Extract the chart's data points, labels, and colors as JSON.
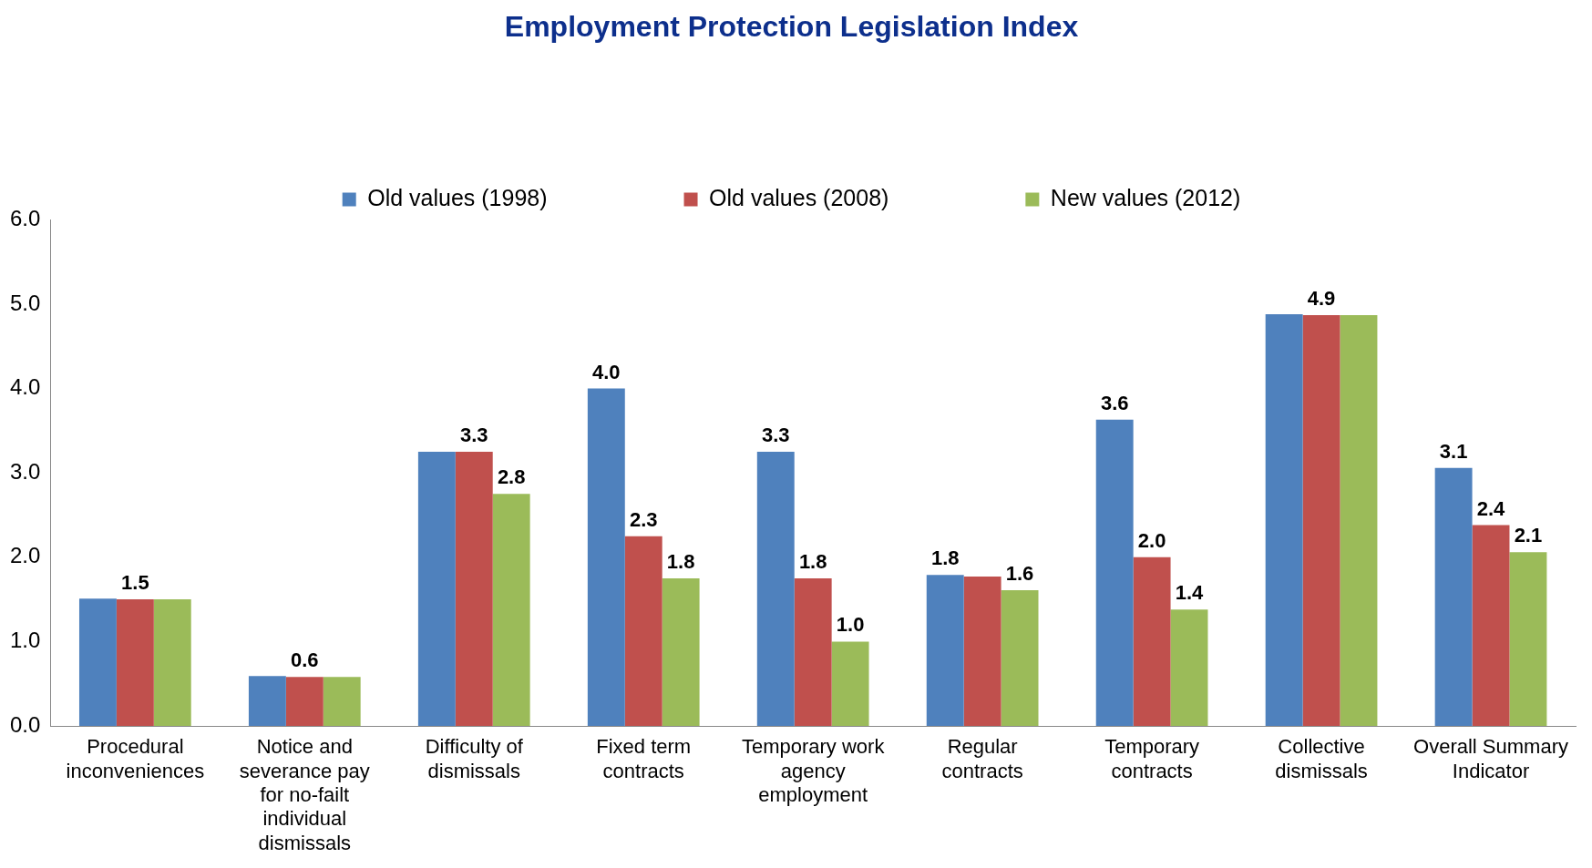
{
  "chart_data": {
    "type": "bar",
    "title": "Employment Protection Legislation Index",
    "categories": [
      "Procedural inconveniences",
      "Notice and severance pay for no-failt individual dismissals",
      "Difficulty of dismissals",
      "Fixed term contracts",
      "Temporary work agency employment",
      "Regular contracts",
      "Temporary contracts",
      "Collective dismissals",
      "Overall Summary Indicator"
    ],
    "series": [
      {
        "name": "Old values (1998)",
        "color": "#4f81bd",
        "values": [
          1.51,
          0.59,
          3.25,
          4.0,
          3.25,
          1.79,
          3.63,
          4.88,
          3.06
        ],
        "value_labels": [
          null,
          null,
          null,
          "4.0",
          "3.3",
          "1.8",
          "3.6",
          null,
          "3.1"
        ]
      },
      {
        "name": "Old values (2008)",
        "color": "#c0504d",
        "values": [
          1.5,
          0.58,
          3.25,
          2.25,
          1.75,
          1.77,
          2.0,
          4.87,
          2.38
        ],
        "value_labels": [
          "1.5",
          "0.6",
          "3.3",
          "2.3",
          "1.8",
          null,
          "2.0",
          "4.9",
          "2.4"
        ]
      },
      {
        "name": "New values (2012)",
        "color": "#9bbb59",
        "values": [
          1.5,
          0.58,
          2.75,
          1.75,
          1.0,
          1.61,
          1.38,
          4.87,
          2.06
        ],
        "value_labels": [
          null,
          null,
          "2.8",
          "1.8",
          "1.0",
          "1.6",
          "1.4",
          null,
          "2.1"
        ]
      }
    ],
    "ylim": [
      0,
      6
    ],
    "yticks": [
      {
        "value": 0,
        "label": "0.0"
      },
      {
        "value": 1,
        "label": "1.0"
      },
      {
        "value": 2,
        "label": "2.0"
      },
      {
        "value": 3,
        "label": "3.0"
      },
      {
        "value": 4,
        "label": "4.0"
      },
      {
        "value": 5,
        "label": "5.0"
      },
      {
        "value": 6,
        "label": "6.0"
      }
    ],
    "grid": false,
    "legend": "top"
  }
}
